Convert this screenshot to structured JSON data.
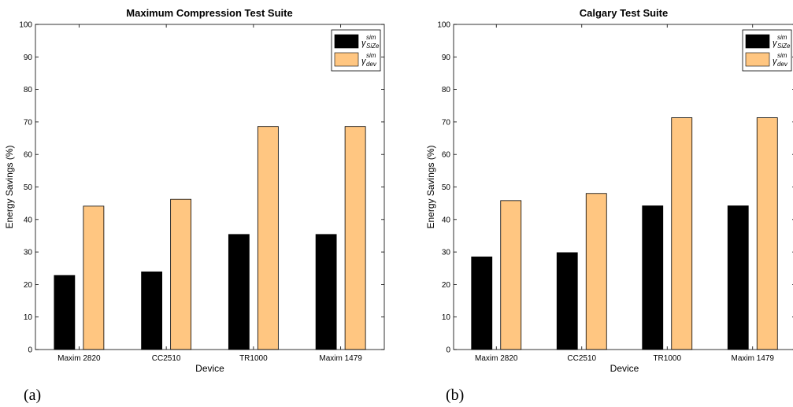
{
  "captions": [
    "(a)",
    "(b)"
  ],
  "colors": {
    "series_size": "#000000",
    "series_dev": "#ffc681",
    "axis": "#000000"
  },
  "legend_entries": [
    {
      "symbol": "γ",
      "sup": "sim",
      "sub": "SiZe"
    },
    {
      "symbol": "γ",
      "sup": "sim",
      "sub": "dev"
    }
  ],
  "chart_data": [
    {
      "type": "bar",
      "title": "Maximum Compression Test Suite",
      "xlabel": "Device",
      "ylabel": "Energy Savings (%)",
      "categories": [
        "Maxim 2820",
        "CC2510",
        "TR1000",
        "Maxim 1479"
      ],
      "ylim": [
        0,
        100
      ],
      "yticks": [
        0,
        10,
        20,
        30,
        40,
        50,
        60,
        70,
        80,
        90,
        100
      ],
      "legend_position": "top-right",
      "grid": false,
      "series": [
        {
          "values": [
            22.8,
            23.9,
            35.4,
            35.4
          ]
        },
        {
          "values": [
            44.1,
            46.2,
            68.6,
            68.6
          ]
        }
      ]
    },
    {
      "type": "bar",
      "title": "Calgary Test Suite",
      "xlabel": "Device",
      "ylabel": "Energy Savings (%)",
      "categories": [
        "Maxim 2820",
        "CC2510",
        "TR1000",
        "Maxim 1479"
      ],
      "ylim": [
        0,
        100
      ],
      "yticks": [
        0,
        10,
        20,
        30,
        40,
        50,
        60,
        70,
        80,
        90,
        100
      ],
      "legend_position": "top-right",
      "grid": false,
      "series": [
        {
          "values": [
            28.5,
            29.8,
            44.2,
            44.2
          ]
        },
        {
          "values": [
            45.8,
            48.0,
            71.3,
            71.3
          ]
        }
      ]
    }
  ]
}
